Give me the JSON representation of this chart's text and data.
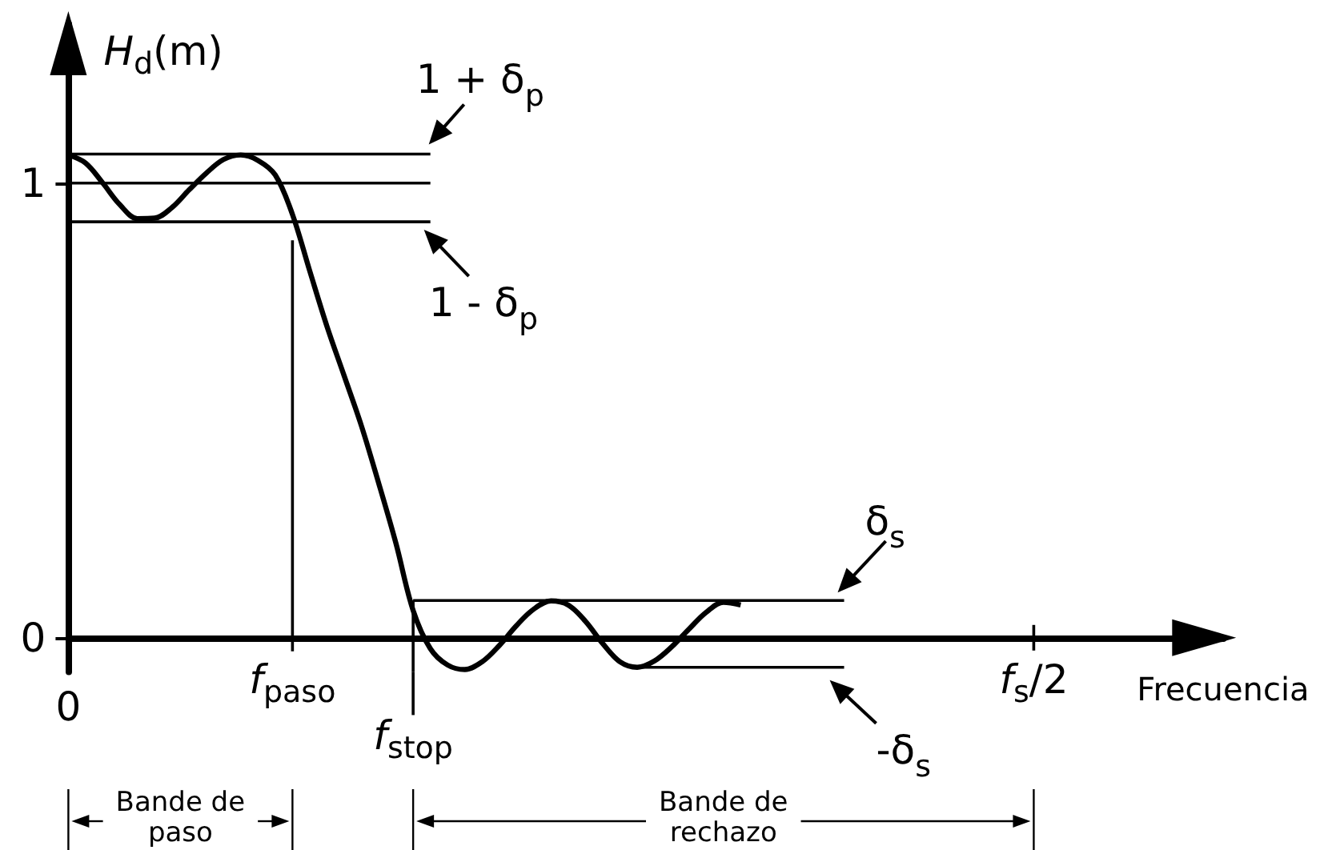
{
  "chart_data": {
    "type": "line",
    "ylabel": "H$_{d}$(m)",
    "xlabel": "Frecuencia",
    "categories": [
      "0",
      null,
      null,
      null,
      null,
      null,
      null,
      null,
      null,
      null,
      null,
      null,
      null,
      "f$_{paso}$",
      null,
      null,
      null,
      null,
      null,
      null,
      "f$_{stop}$",
      null,
      null,
      null,
      null,
      null,
      null,
      null,
      null,
      null,
      null,
      null,
      null,
      null,
      null,
      null,
      null,
      null,
      null,
      null,
      null,
      null,
      null,
      null,
      null,
      null,
      null,
      null,
      null,
      null,
      null,
      null,
      null,
      null,
      null,
      null,
      "f$_{s}$/2",
      null,
      null,
      null,
      null,
      null,
      null,
      null,
      null,
      null,
      null,
      null
    ],
    "ylim": [
      -0.075,
      1.35
    ],
    "yticks": [
      0,
      1
    ],
    "marker": "none",
    "series": [
      {
        "color": "#000000",
        "values": [
          1.062,
          1.044,
          1.0,
          0.952,
          0.922,
          0.923,
          0.946,
          0.985,
          1.022,
          1.052,
          1.062,
          1.05,
          1.018,
          0.931,
          0.807,
          0.685,
          0.576,
          0.466,
          0.34,
          0.208,
          0.06,
          -0.024,
          -0.06,
          -0.07,
          -0.053,
          -0.017,
          0.027,
          0.063,
          0.081,
          0.072,
          0.036,
          -0.013,
          -0.053,
          -0.065,
          -0.051,
          -0.02,
          0.019,
          0.056,
          0.078,
          0.072,
          null,
          null,
          null,
          null,
          null,
          null,
          null,
          null,
          null,
          null,
          null,
          null,
          null,
          null,
          null,
          null,
          null,
          null,
          null,
          null,
          null,
          null,
          null,
          null,
          null,
          null,
          null,
          null
        ]
      },
      {
        "color": "#000000",
        "values": [
          1.064,
          1.064,
          1.064,
          1.064,
          1.064,
          1.064,
          1.064,
          1.064,
          1.064,
          1.064,
          1.064,
          1.064,
          1.064,
          1.064,
          1.064,
          1.064,
          1.064,
          1.064,
          1.064,
          1.064,
          1.064,
          1.064,
          null,
          null,
          null,
          null,
          null,
          null,
          null,
          null,
          null,
          null,
          null,
          null,
          null,
          null,
          null,
          null,
          null,
          null,
          null,
          null,
          null,
          null,
          null,
          null,
          null,
          null,
          null,
          null,
          null,
          null,
          null,
          null,
          null,
          null,
          null,
          null,
          null,
          null,
          null,
          null,
          null,
          null,
          null,
          null,
          null,
          null
        ]
      },
      {
        "color": "#000000",
        "values": [
          1,
          1,
          1,
          1,
          1,
          1,
          1,
          1,
          1,
          1,
          1,
          1,
          1,
          1,
          1,
          1,
          1,
          1,
          1,
          1,
          1,
          1,
          null,
          null,
          null,
          null,
          null,
          null,
          null,
          null,
          null,
          null,
          null,
          null,
          null,
          null,
          null,
          null,
          null,
          null,
          null,
          null,
          null,
          null,
          null,
          null,
          null,
          null,
          null,
          null,
          null,
          null,
          null,
          null,
          null,
          null,
          null,
          null,
          null,
          null,
          null,
          null,
          null,
          null,
          null,
          null,
          null,
          null
        ]
      },
      {
        "color": "#000000",
        "values": [
          0.915,
          0.915,
          0.915,
          0.915,
          0.915,
          0.915,
          0.915,
          0.915,
          0.915,
          0.915,
          0.915,
          0.915,
          0.915,
          0.915,
          0.915,
          0.915,
          0.915,
          0.915,
          0.915,
          0.915,
          0.915,
          0.915,
          null,
          null,
          null,
          null,
          null,
          null,
          null,
          null,
          null,
          null,
          null,
          null,
          null,
          null,
          null,
          null,
          null,
          null,
          null,
          null,
          null,
          null,
          null,
          null,
          null,
          null,
          null,
          null,
          null,
          null,
          null,
          null,
          null,
          null,
          null,
          null,
          null,
          null,
          null,
          null,
          null,
          null,
          null,
          null,
          null,
          null
        ]
      },
      {
        "color": "#000000",
        "x": [
          "f$_{paso}$",
          "f$_{paso}$"
        ],
        "values": [
          0.874,
          -0.03
        ]
      },
      {
        "color": "#000000",
        "x": [
          "f$_{stop}$",
          "f$_{stop}$"
        ],
        "values": [
          0.082,
          -0.075
        ]
      },
      {
        "color": "#000000",
        "values": [
          null,
          null,
          null,
          null,
          null,
          null,
          null,
          null,
          null,
          null,
          null,
          null,
          null,
          null,
          null,
          null,
          null,
          null,
          null,
          null,
          0.082,
          0.082,
          0.082,
          0.082,
          0.082,
          0.082,
          0.082,
          0.082,
          0.082,
          0.082,
          0.082,
          0.082,
          0.082,
          0.082,
          0.082,
          0.082,
          0.082,
          0.082,
          0.082,
          0.082,
          0.082,
          0.082,
          0.082,
          0.082,
          0.082,
          0.082,
          null,
          null,
          null,
          null,
          null,
          null,
          null,
          null,
          null,
          null,
          null,
          null,
          null,
          null,
          null,
          null,
          null,
          null,
          null,
          null,
          null,
          null
        ]
      },
      {
        "color": "#000000",
        "values": [
          null,
          null,
          null,
          null,
          null,
          null,
          null,
          null,
          null,
          null,
          null,
          null,
          null,
          null,
          null,
          null,
          null,
          null,
          null,
          null,
          null,
          null,
          null,
          null,
          null,
          null,
          null,
          null,
          null,
          null,
          null,
          null,
          null,
          -0.065,
          -0.065,
          -0.065,
          -0.065,
          -0.065,
          -0.065,
          -0.065,
          -0.065,
          -0.065,
          -0.065,
          -0.065,
          -0.065,
          -0.065,
          null,
          null,
          null,
          null,
          null,
          null,
          null,
          null,
          null,
          null,
          null,
          null,
          null,
          null,
          null,
          null,
          null,
          null,
          null,
          null,
          null,
          null
        ]
      }
    ],
    "annotations": [
      "1 + δ$_{p}$",
      "1 - δ$_{p}$",
      "δ$_{s}$",
      "-δ$_{s}$",
      "Bande de paso",
      "Bande de rechazo"
    ]
  }
}
